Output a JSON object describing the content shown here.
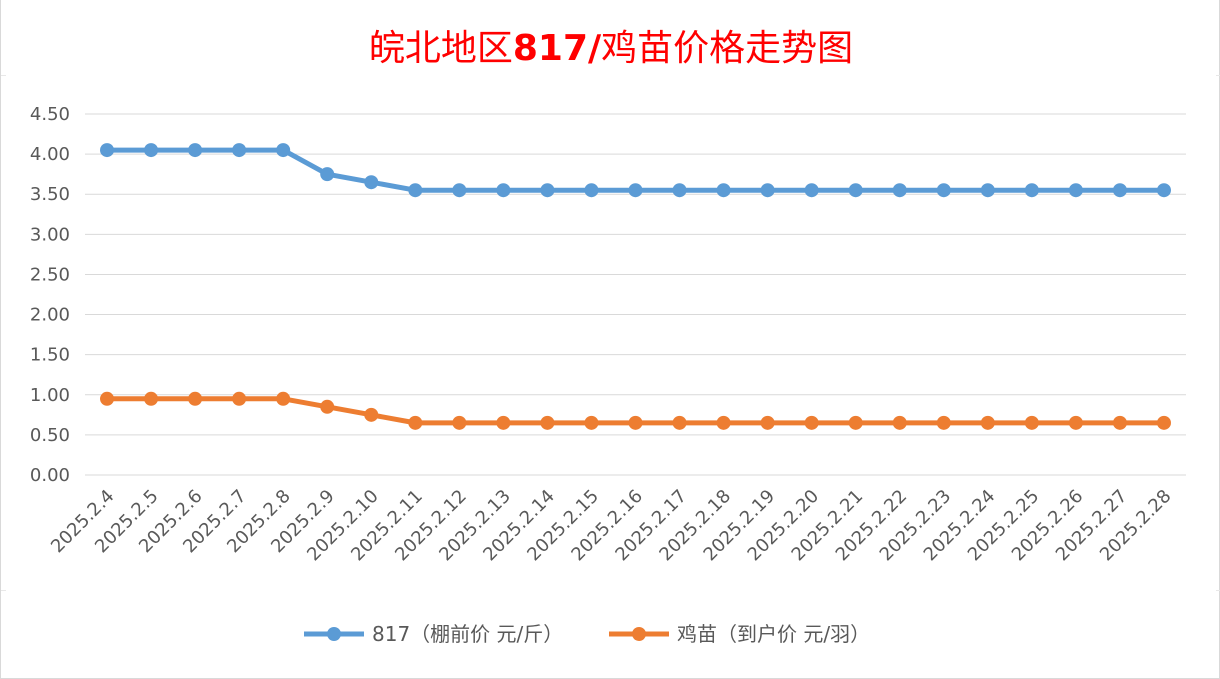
{
  "chart_data": {
    "type": "line",
    "title_parts": [
      "皖北地区",
      "817/",
      "鸡苗价格走势图"
    ],
    "categories": [
      "2025.2.4",
      "2025.2.5",
      "2025.2.6",
      "2025.2.7",
      "2025.2.8",
      "2025.2.9",
      "2025.2.10",
      "2025.2.11",
      "2025.2.12",
      "2025.2.13",
      "2025.2.14",
      "2025.2.15",
      "2025.2.16",
      "2025.2.17",
      "2025.2.18",
      "2025.2.19",
      "2025.2.20",
      "2025.2.21",
      "2025.2.22",
      "2025.2.23",
      "2025.2.24",
      "2025.2.25",
      "2025.2.26",
      "2025.2.27",
      "2025.2.28"
    ],
    "series": [
      {
        "name": "817（棚前价 元/斤）",
        "color": "#5b9bd5",
        "values": [
          4.05,
          4.05,
          4.05,
          4.05,
          4.05,
          3.75,
          3.65,
          3.55,
          3.55,
          3.55,
          3.55,
          3.55,
          3.55,
          3.55,
          3.55,
          3.55,
          3.55,
          3.55,
          3.55,
          3.55,
          3.55,
          3.55,
          3.55,
          3.55,
          3.55
        ]
      },
      {
        "name": "鸡苗（到户价 元/羽）",
        "color": "#ed7d31",
        "values": [
          0.95,
          0.95,
          0.95,
          0.95,
          0.95,
          0.85,
          0.75,
          0.65,
          0.65,
          0.65,
          0.65,
          0.65,
          0.65,
          0.65,
          0.65,
          0.65,
          0.65,
          0.65,
          0.65,
          0.65,
          0.65,
          0.65,
          0.65,
          0.65,
          0.65
        ]
      }
    ],
    "yticks": [
      "0.00",
      "0.50",
      "1.00",
      "1.50",
      "2.00",
      "2.50",
      "3.00",
      "3.50",
      "4.00",
      "4.50"
    ],
    "ylim": [
      0,
      4.5
    ],
    "grid": true,
    "legend_position": "bottom"
  }
}
